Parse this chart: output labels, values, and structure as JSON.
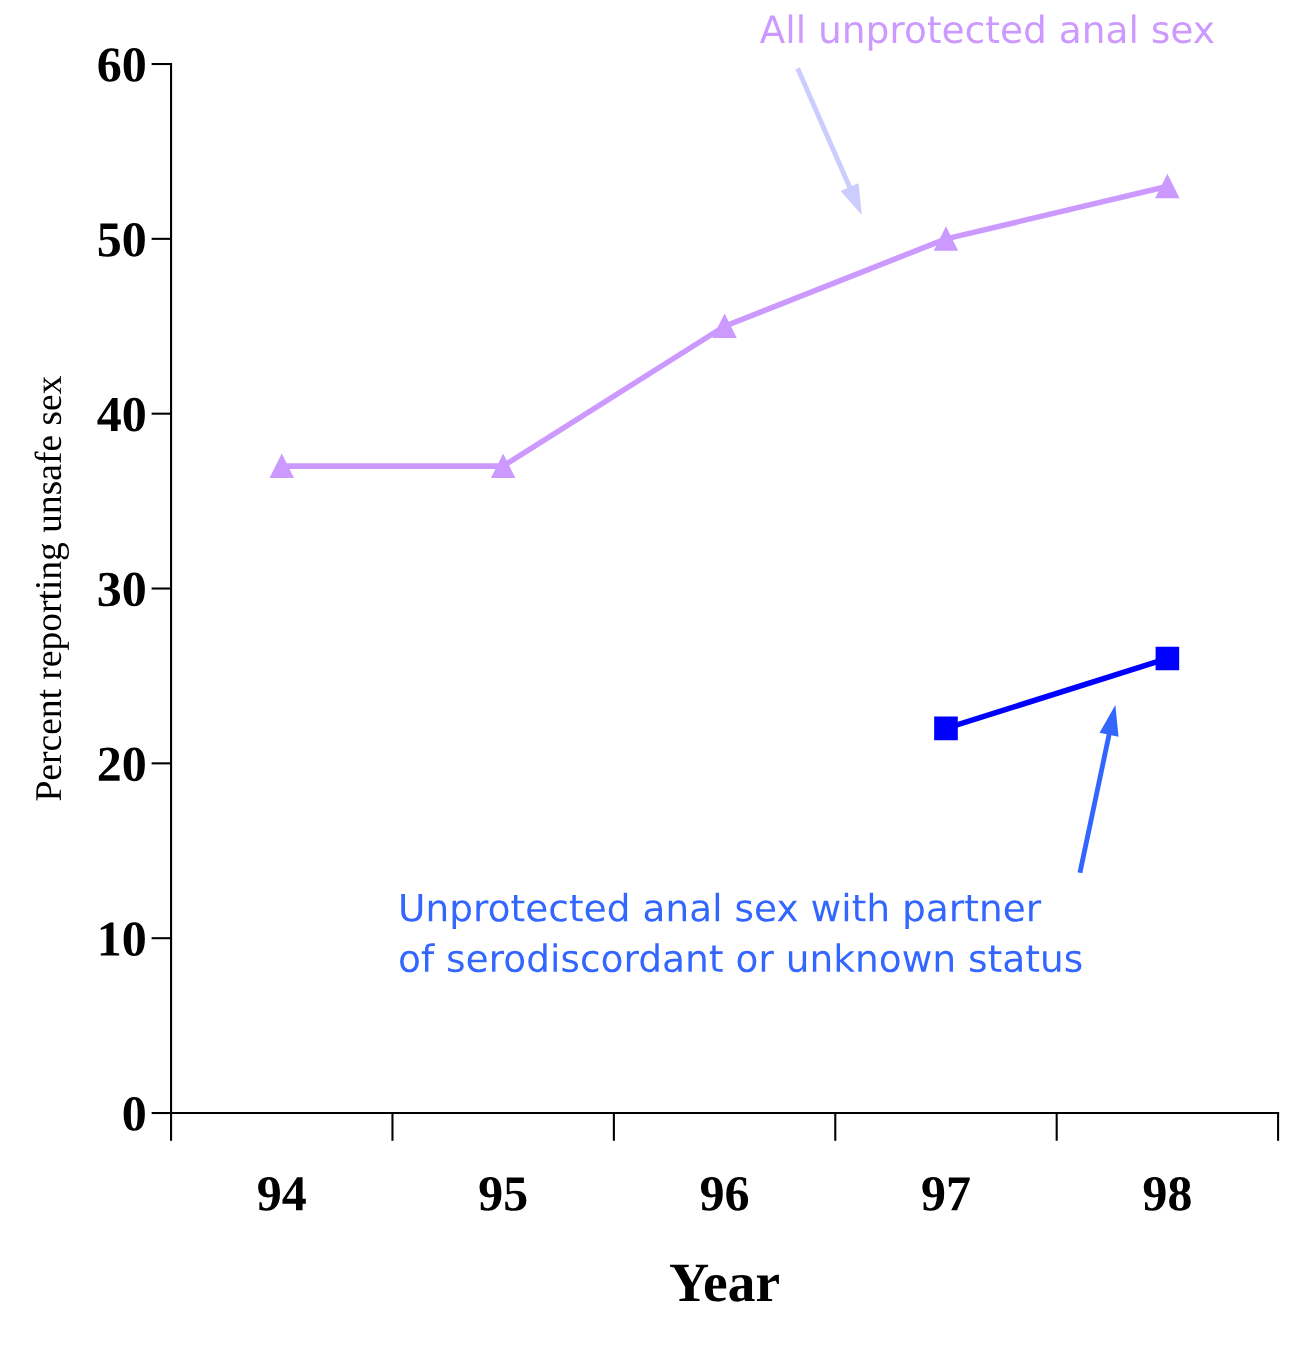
{
  "chart_data": {
    "type": "line",
    "xlabel": "Year",
    "ylabel": "Percent reporting unsafe sex",
    "categories": [
      "94",
      "95",
      "96",
      "97",
      "98"
    ],
    "series": [
      {
        "color": "#cc99ff",
        "marker": "triangle",
        "values": [
          37,
          37,
          45,
          50,
          53
        ]
      },
      {
        "color": "#0000ff",
        "marker": "square",
        "values": [
          null,
          null,
          null,
          22,
          26
        ]
      }
    ],
    "ylim": [
      0,
      60
    ],
    "yticks": [
      0,
      10,
      20,
      30,
      40,
      50,
      60
    ],
    "grid": false,
    "legend": false,
    "line_style": "solid",
    "annotations": [
      "All unprotected anal sex",
      "Unprotected anal sex with partner\nof serodiscordant or unknown status"
    ]
  }
}
